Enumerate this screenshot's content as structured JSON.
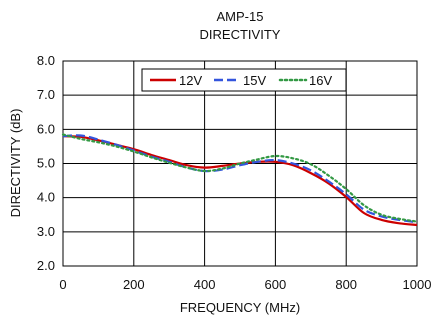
{
  "chart_data": {
    "type": "line",
    "title": "AMP-15",
    "subtitle": "DIRECTIVITY",
    "xlabel": "FREQUENCY (MHz)",
    "ylabel": "DIRECTIVITY (dB)",
    "xlim": [
      0,
      1000
    ],
    "ylim": [
      2.0,
      8.0
    ],
    "x_ticks": [
      "0",
      "200",
      "400",
      "600",
      "800",
      "1000"
    ],
    "y_ticks": [
      "2.0",
      "3.0",
      "4.0",
      "5.0",
      "6.0",
      "7.0",
      "8.0"
    ],
    "grid": true,
    "legend_position": "top-center",
    "x": [
      0,
      50,
      100,
      150,
      200,
      250,
      300,
      350,
      400,
      450,
      500,
      550,
      600,
      650,
      700,
      750,
      800,
      850,
      900,
      950,
      1000
    ],
    "series": [
      {
        "name": "12V",
        "color": "#cc0000",
        "dash": "solid",
        "values": [
          5.8,
          5.78,
          5.68,
          5.55,
          5.42,
          5.25,
          5.1,
          4.95,
          4.88,
          4.93,
          5.0,
          5.05,
          5.05,
          4.95,
          4.72,
          4.42,
          4.02,
          3.55,
          3.35,
          3.25,
          3.2
        ]
      },
      {
        "name": "15V",
        "color": "#3355dd",
        "dash": "dash",
        "values": [
          5.8,
          5.82,
          5.7,
          5.55,
          5.38,
          5.2,
          5.05,
          4.88,
          4.78,
          4.82,
          4.95,
          5.05,
          5.1,
          5.0,
          4.8,
          4.48,
          4.1,
          3.65,
          3.45,
          3.35,
          3.28
        ]
      },
      {
        "name": "16V",
        "color": "#339944",
        "dash": "dot",
        "values": [
          5.85,
          5.72,
          5.62,
          5.5,
          5.35,
          5.18,
          5.02,
          4.88,
          4.78,
          4.85,
          5.0,
          5.12,
          5.22,
          5.15,
          4.98,
          4.65,
          4.25,
          3.78,
          3.5,
          3.38,
          3.3
        ]
      }
    ]
  }
}
